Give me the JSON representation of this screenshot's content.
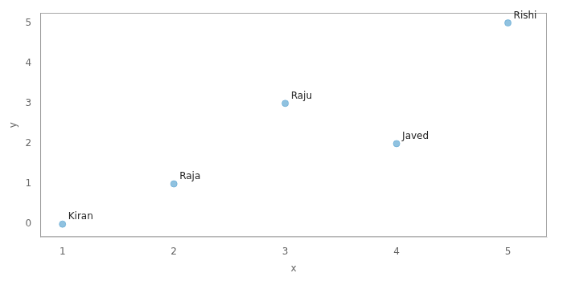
{
  "chart_data": {
    "type": "scatter",
    "x": [
      1,
      2,
      3,
      4,
      5
    ],
    "values": [
      0,
      1,
      3,
      2,
      5
    ],
    "labels": [
      "Kiran",
      "Raja",
      "Raju",
      "Javed",
      "Rishi"
    ],
    "color": "#6baed6",
    "xlabel": "x",
    "ylabel": "y",
    "xlim": [
      0.8,
      5.35
    ],
    "ylim": [
      -0.32,
      5.25
    ],
    "xticks": [
      1,
      2,
      3,
      4,
      5
    ],
    "yticks": [
      0,
      1,
      2,
      3,
      4,
      5
    ],
    "grid": false
  }
}
